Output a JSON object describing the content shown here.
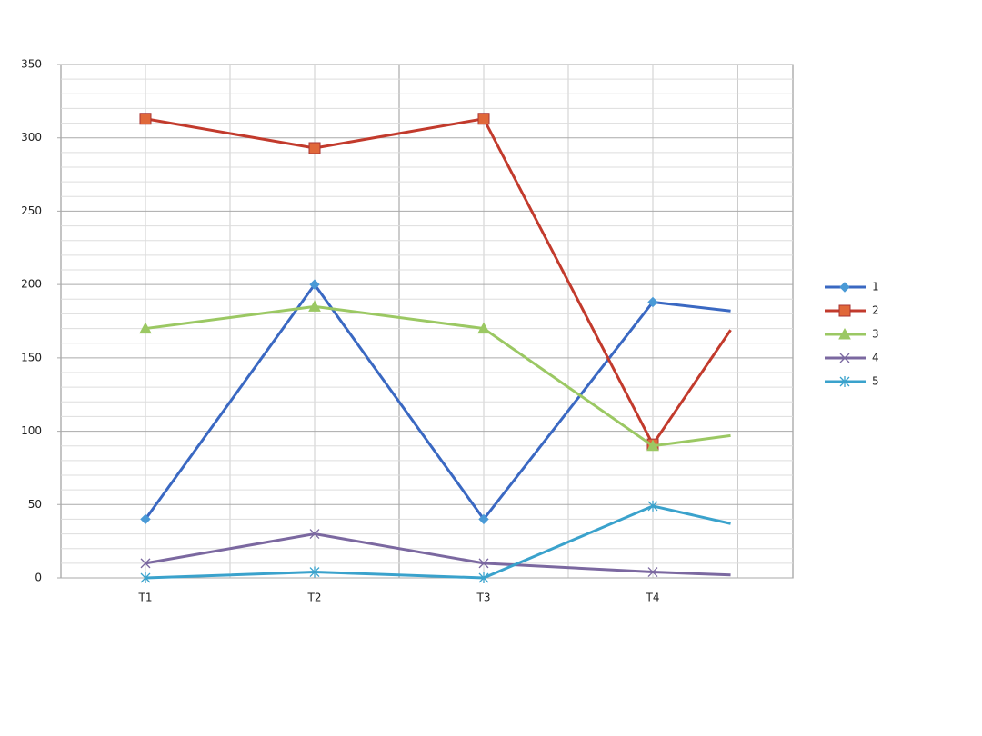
{
  "chart_data": {
    "type": "line",
    "categories": [
      "T1",
      "T2",
      "T3",
      "T4",
      null
    ],
    "series": [
      {
        "name": "1",
        "color": "#3a68c2",
        "marker": "diamond",
        "marker_color": "#4a9ad6",
        "values": [
          40,
          200,
          40,
          188,
          182
        ]
      },
      {
        "name": "2",
        "color": "#c23a2c",
        "marker": "square",
        "marker_color": "#e0683a",
        "values": [
          313,
          293,
          313,
          91,
          169
        ]
      },
      {
        "name": "3",
        "color": "#9bc863",
        "marker": "triangle",
        "marker_color": "#9bc863",
        "values": [
          170,
          185,
          170,
          90,
          97
        ]
      },
      {
        "name": "4",
        "color": "#7b68a0",
        "marker": "x",
        "marker_color": "#7b68a0",
        "values": [
          10,
          30,
          10,
          4,
          2
        ]
      },
      {
        "name": "5",
        "color": "#3aa2cc",
        "marker": "star",
        "marker_color": "#3aa2cc",
        "values": [
          0,
          4,
          0,
          49,
          37
        ]
      }
    ],
    "ylim": [
      0,
      350
    ],
    "yticks": [
      0,
      50,
      100,
      150,
      200,
      250,
      300,
      350
    ],
    "grid": true,
    "minor_grid": true,
    "legend": "right"
  }
}
